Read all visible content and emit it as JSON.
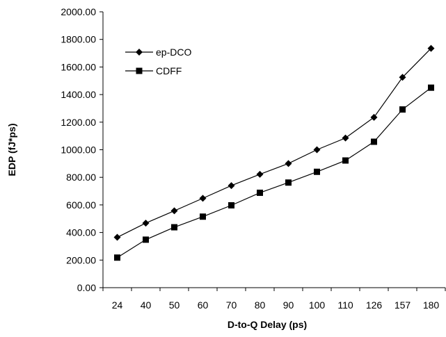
{
  "chart_data": {
    "type": "line",
    "title": "",
    "xlabel": "D-to-Q Delay (ps)",
    "ylabel": "EDP (fJ*ps)",
    "categories": [
      "24",
      "40",
      "50",
      "60",
      "70",
      "80",
      "90",
      "100",
      "110",
      "126",
      "157",
      "180"
    ],
    "ylim": [
      0,
      2000
    ],
    "yticks": [
      "0.00",
      "200.00",
      "400.00",
      "600.00",
      "800.00",
      "1000.00",
      "1200.00",
      "1400.00",
      "1600.00",
      "1800.00",
      "2000.00"
    ],
    "grid": false,
    "legend_position": "top-left",
    "series": [
      {
        "name": "ep-DCO",
        "marker": "diamond",
        "color": "#000000",
        "values": [
          365,
          468,
          557,
          648,
          740,
          822,
          900,
          1000,
          1085,
          1235,
          1525,
          1735
        ]
      },
      {
        "name": "CDFF",
        "marker": "square",
        "color": "#000000",
        "values": [
          218,
          348,
          438,
          515,
          597,
          688,
          762,
          840,
          922,
          1058,
          1292,
          1450
        ]
      }
    ]
  }
}
